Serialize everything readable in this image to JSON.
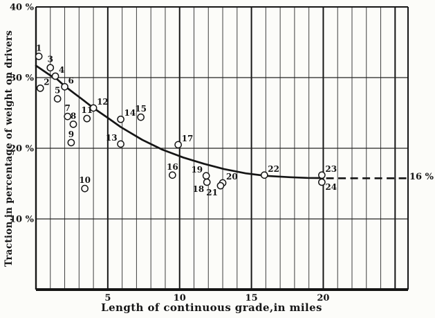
{
  "figure": {
    "background": "#fcfcf9",
    "ink": "#151515",
    "minor_grid_color": "#3d3d3d",
    "mid_line_color": "#222222"
  },
  "chart_data": {
    "type": "scatter",
    "title": "",
    "xlabel": "Length of continuous grade,in miles",
    "ylabel": "Traction,in percentage of weight on drivers",
    "xlim": [
      0,
      25.9
    ],
    "ylim": [
      0,
      40
    ],
    "grid": "vertical line every 1 mile (heavy every 5); horizontal lines at 10,20,30,40 %",
    "legend_position": "none",
    "x_minor_grid_step": 1,
    "x_major_grid_step": 5,
    "xticks": [
      {
        "value": 5,
        "label": "5"
      },
      {
        "value": 10,
        "label": "10"
      },
      {
        "value": 15,
        "label": "15"
      },
      {
        "value": 20,
        "label": "20"
      }
    ],
    "yticks": [
      {
        "value": 40,
        "label": "40 %"
      },
      {
        "value": 30,
        "label": "30 %"
      },
      {
        "value": 20,
        "label": "20 %"
      },
      {
        "value": 10,
        "label": "10 %"
      }
    ],
    "points": [
      {
        "id": "1",
        "x": 0.2,
        "y": 33.0,
        "label_pos": "above"
      },
      {
        "id": "2",
        "x": 0.3,
        "y": 28.5,
        "label_pos": "above-right"
      },
      {
        "id": "3",
        "x": 1.0,
        "y": 31.4,
        "label_pos": "above"
      },
      {
        "id": "4",
        "x": 1.35,
        "y": 30.2,
        "label_pos": "above-right"
      },
      {
        "id": "5",
        "x": 1.5,
        "y": 27.0,
        "label_pos": "above"
      },
      {
        "id": "6",
        "x": 2.0,
        "y": 28.7,
        "label_pos": "above-right"
      },
      {
        "id": "7",
        "x": 2.2,
        "y": 24.5,
        "label_pos": "above"
      },
      {
        "id": "8",
        "x": 2.6,
        "y": 23.4,
        "label_pos": "above"
      },
      {
        "id": "9",
        "x": 2.45,
        "y": 20.8,
        "label_pos": "above"
      },
      {
        "id": "10",
        "x": 3.4,
        "y": 14.3,
        "label_pos": "above"
      },
      {
        "id": "11",
        "x": 3.55,
        "y": 24.2,
        "label_pos": "above"
      },
      {
        "id": "12",
        "x": 4.0,
        "y": 25.7,
        "label_pos": "above-right"
      },
      {
        "id": "13",
        "x": 5.9,
        "y": 20.6,
        "label_pos": "above-left"
      },
      {
        "id": "14",
        "x": 5.9,
        "y": 24.1,
        "label_pos": "above-right"
      },
      {
        "id": "15",
        "x": 7.3,
        "y": 24.4,
        "label_pos": "above"
      },
      {
        "id": "16",
        "x": 9.5,
        "y": 16.2,
        "label_pos": "above"
      },
      {
        "id": "17",
        "x": 9.9,
        "y": 20.5,
        "label_pos": "above-right"
      },
      {
        "id": "18",
        "x": 11.9,
        "y": 15.2,
        "label_pos": "below-left"
      },
      {
        "id": "19",
        "x": 11.85,
        "y": 16.1,
        "label_pos": "above-left"
      },
      {
        "id": "20",
        "x": 13.0,
        "y": 15.1,
        "label_pos": "above-right"
      },
      {
        "id": "21",
        "x": 12.85,
        "y": 14.7,
        "label_pos": "below-left"
      },
      {
        "id": "22",
        "x": 15.9,
        "y": 16.2,
        "label_pos": "above-right"
      },
      {
        "id": "23",
        "x": 19.9,
        "y": 16.2,
        "label_pos": "above-right"
      },
      {
        "id": "24",
        "x": 19.9,
        "y": 15.2,
        "label_pos": "below-right"
      }
    ],
    "curve": [
      [
        0,
        31.7
      ],
      [
        1,
        30.3
      ],
      [
        1.4,
        29.9
      ],
      [
        2,
        28.8
      ],
      [
        2.65,
        27.8
      ],
      [
        3.3,
        26.8
      ],
      [
        4,
        25.7
      ],
      [
        5,
        24.3
      ],
      [
        5.9,
        23.0
      ],
      [
        7.4,
        21.2
      ],
      [
        8.8,
        19.8
      ],
      [
        10.25,
        18.7
      ],
      [
        11.7,
        17.8
      ],
      [
        13.1,
        17.05
      ],
      [
        14.6,
        16.45
      ],
      [
        16.0,
        16.1
      ],
      [
        17.7,
        15.9
      ],
      [
        18.9,
        15.8
      ],
      [
        19.95,
        15.78
      ]
    ],
    "dashed_extension": {
      "from_x": 20.2,
      "to_x": 25.85,
      "y": 15.75,
      "label": "16 %"
    }
  }
}
